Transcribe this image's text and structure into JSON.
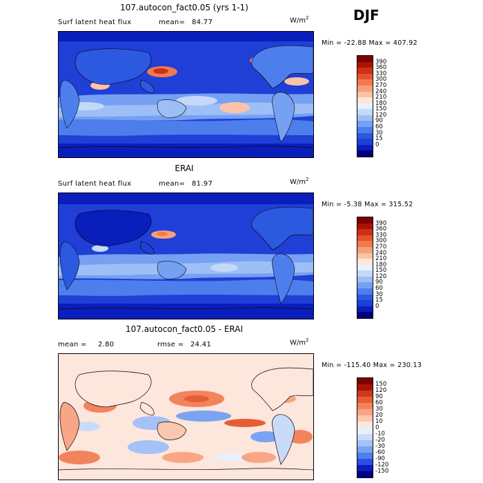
{
  "season": "DJF",
  "units": "W/m",
  "units_exp": "2",
  "colors": {
    "seq": [
      "#00007f",
      "#0a1ebc",
      "#1f3fd6",
      "#2b59e0",
      "#4d7fec",
      "#76a0f2",
      "#9ebef6",
      "#c4d8fa",
      "#eaf1fd",
      "#fde6dc",
      "#fbc3a8",
      "#f7a078",
      "#f07a50",
      "#e4532f",
      "#cf2f14",
      "#a91306",
      "#7f0000"
    ],
    "diff": [
      "#00007f",
      "#0a1ebc",
      "#2b4fde",
      "#4d7fec",
      "#7aa3f2",
      "#a5c2f7",
      "#cadbfa",
      "#e9f0fd",
      "#fde6dc",
      "#fbc7ae",
      "#f8a685",
      "#f2845d",
      "#e55d36",
      "#cf3818",
      "#a91306",
      "#7f0000"
    ],
    "land_tint": "#ffffff"
  },
  "panels": [
    {
      "id": "model",
      "title": "107.autocon_fact0.05 (yrs 1-1)",
      "left_label": "Surf latent heat flux",
      "stat_label": "mean=",
      "stat_value": "84.77",
      "min_label": "Min =",
      "min_value": "-22.88",
      "max_label": "Max =",
      "max_value": "407.92",
      "colorbar_ticks": [
        "390",
        "360",
        "330",
        "300",
        "270",
        "240",
        "210",
        "180",
        "150",
        "120",
        "90",
        "60",
        "30",
        "15",
        "0"
      ]
    },
    {
      "id": "obs",
      "title": "ERAI",
      "left_label": "Surf latent heat flux",
      "stat_label": "mean=",
      "stat_value": "81.97",
      "min_label": "Min =",
      "min_value": "-5.38",
      "max_label": "Max =",
      "max_value": "315.52",
      "colorbar_ticks": [
        "390",
        "360",
        "330",
        "300",
        "270",
        "240",
        "210",
        "180",
        "150",
        "120",
        "90",
        "60",
        "30",
        "15",
        "0"
      ]
    },
    {
      "id": "diff",
      "title": "107.autocon_fact0.05 - ERAI",
      "left_label": "mean =",
      "left_value": "2.80",
      "stat_label": "rmse =",
      "stat_value": "24.41",
      "min_label": "Min =",
      "min_value": "-115.40",
      "max_label": "Max =",
      "max_value": "230.13",
      "colorbar_ticks": [
        "150",
        "120",
        "90",
        "60",
        "30",
        "20",
        "10",
        "0",
        "-10",
        "-20",
        "-30",
        "-60",
        "-90",
        "-120",
        "-150"
      ]
    }
  ]
}
